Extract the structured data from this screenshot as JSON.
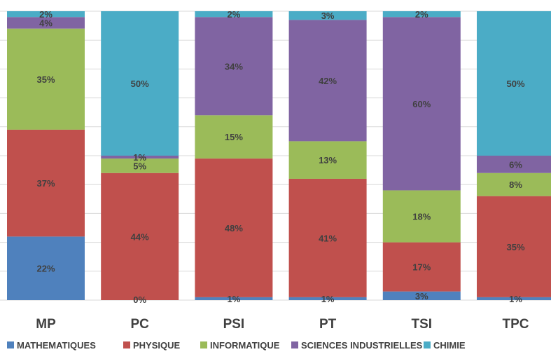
{
  "chart_data": {
    "type": "bar",
    "stacked": true,
    "normalized": true,
    "categories": [
      "MP",
      "PC",
      "PSI",
      "PT",
      "TSI",
      "TPC"
    ],
    "series": [
      {
        "name": "MATHEMATIQUES",
        "color": "#4f81bd",
        "values": [
          22,
          0,
          1,
          1,
          3,
          1
        ],
        "labels": [
          "22%",
          "0%",
          "1%",
          "1%",
          "3%",
          "1%"
        ]
      },
      {
        "name": "PHYSIQUE",
        "color": "#c0504d",
        "values": [
          37,
          44,
          48,
          41,
          17,
          35
        ],
        "labels": [
          "37%",
          "44%",
          "48%",
          "41%",
          "17%",
          "35%"
        ]
      },
      {
        "name": "INFORMATIQUE",
        "color": "#9bbb59",
        "values": [
          35,
          5,
          15,
          13,
          18,
          8
        ],
        "labels": [
          "35%",
          "5%",
          "15%",
          "13%",
          "18%",
          "8%"
        ]
      },
      {
        "name": "SCIENCES INDUSTRIELLES",
        "color": "#8064a2",
        "values": [
          4,
          1,
          34,
          42,
          60,
          6
        ],
        "labels": [
          "4%",
          "1%",
          "34%",
          "42%",
          "60%",
          "6%"
        ]
      },
      {
        "name": "CHIMIE",
        "color": "#4bacc6",
        "values": [
          2,
          50,
          2,
          3,
          2,
          50
        ],
        "labels": [
          "2%",
          "50%",
          "2%",
          "3%",
          "2%",
          "50%"
        ]
      }
    ],
    "ylim": [
      0,
      100
    ],
    "grid": true,
    "legend": "bottom"
  }
}
